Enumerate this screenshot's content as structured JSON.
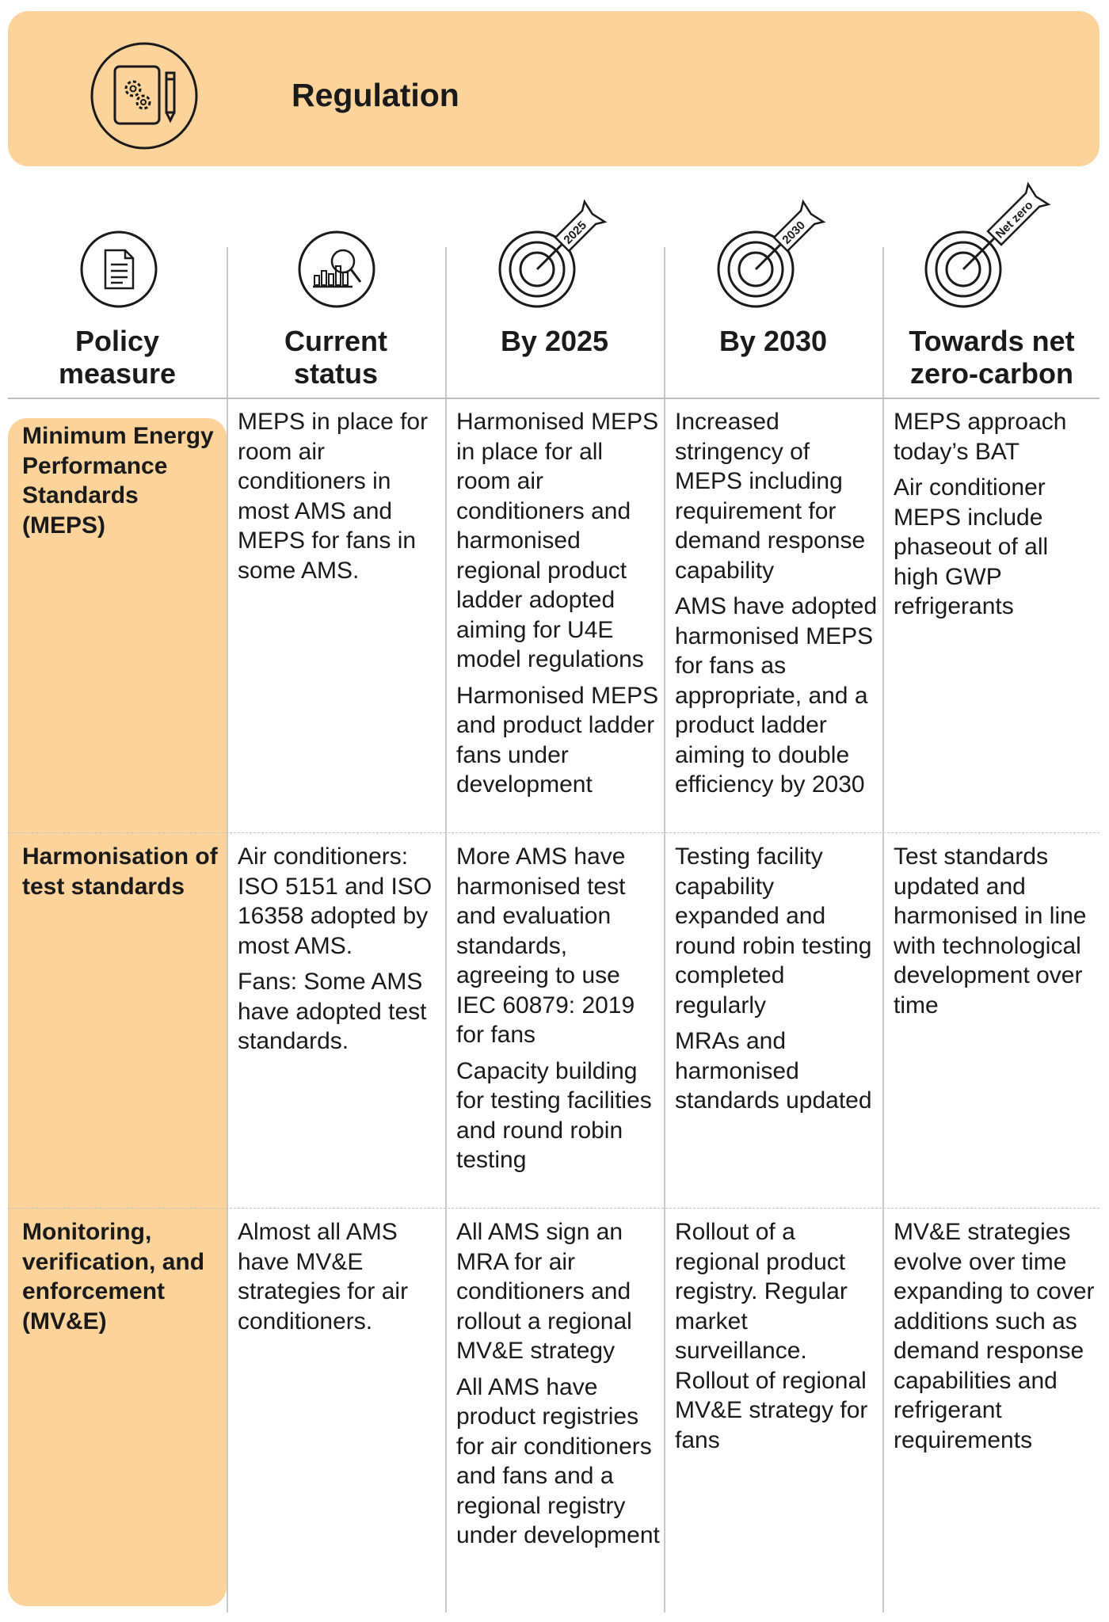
{
  "banner": {
    "title": "Regulation",
    "icon": "document-gears-pencil-icon"
  },
  "columns": [
    {
      "label_line1": "Policy",
      "label_line2": "measure",
      "icon": "document-icon"
    },
    {
      "label_line1": "Current",
      "label_line2": "status",
      "icon": "magnifier-chart-icon"
    },
    {
      "label_line1": "By 2025",
      "label_line2": "",
      "icon": "target-icon",
      "flag": "2025"
    },
    {
      "label_line1": "By 2030",
      "label_line2": "",
      "icon": "target-icon",
      "flag": "2030"
    },
    {
      "label_line1": "Towards net",
      "label_line2": "zero-carbon",
      "icon": "target-icon",
      "flag": "Net zero"
    }
  ],
  "rows": [
    {
      "measure": "Minimum Energy Performance Standards (MEPS)",
      "current": [
        "MEPS in place for room air conditioners in most  AMS and MEPS for fans in some AMS."
      ],
      "by2025": [
        "Harmonised MEPS in place for all room air conditioners and harmonised regional product ladder adopted aiming for U4E model regulations",
        "Harmonised MEPS and product ladder fans under development"
      ],
      "by2030": [
        "Increased stringency of MEPS including requirement for demand response capability",
        "AMS have adopted harmonised MEPS for fans as appropriate, and a product ladder aiming to double efficiency by 2030"
      ],
      "netzero": [
        "MEPS approach today’s BAT",
        "Air conditioner MEPS include phaseout of all high GWP refrigerants"
      ]
    },
    {
      "measure": "Harmonisation of test standards",
      "current": [
        "Air conditioners: ISO 5151 and ISO 16358 adopted by most AMS.",
        "Fans: Some AMS have adopted test standards."
      ],
      "by2025": [
        "More AMS have harmonised test and evaluation standards, agreeing to use IEC 60879: 2019 for fans",
        "Capacity building for testing facilities and round robin testing"
      ],
      "by2030": [
        "Testing facility capability expanded and round robin testing completed regularly",
        "MRAs and harmonised standards updated"
      ],
      "netzero": [
        "Test standards updated and harmonised in line with technological development over time"
      ]
    },
    {
      "measure": "Monitoring, verification, and enforcement (MV&E)",
      "current": [
        "Almost all AMS have MV&E strategies for air conditioners."
      ],
      "by2025": [
        "All AMS sign an MRA for air conditioners and rollout a regional MV&E strategy",
        "All AMS have product registries for air conditioners and fans and a regional registry under development"
      ],
      "by2030": [
        "Rollout of a regional product registry. Regular market surveillance. Rollout of regional MV&E strategy for fans"
      ],
      "netzero": [
        "MV&E strategies evolve over time expanding to cover additions such as demand response capabilities and refrigerant requirements"
      ]
    }
  ]
}
